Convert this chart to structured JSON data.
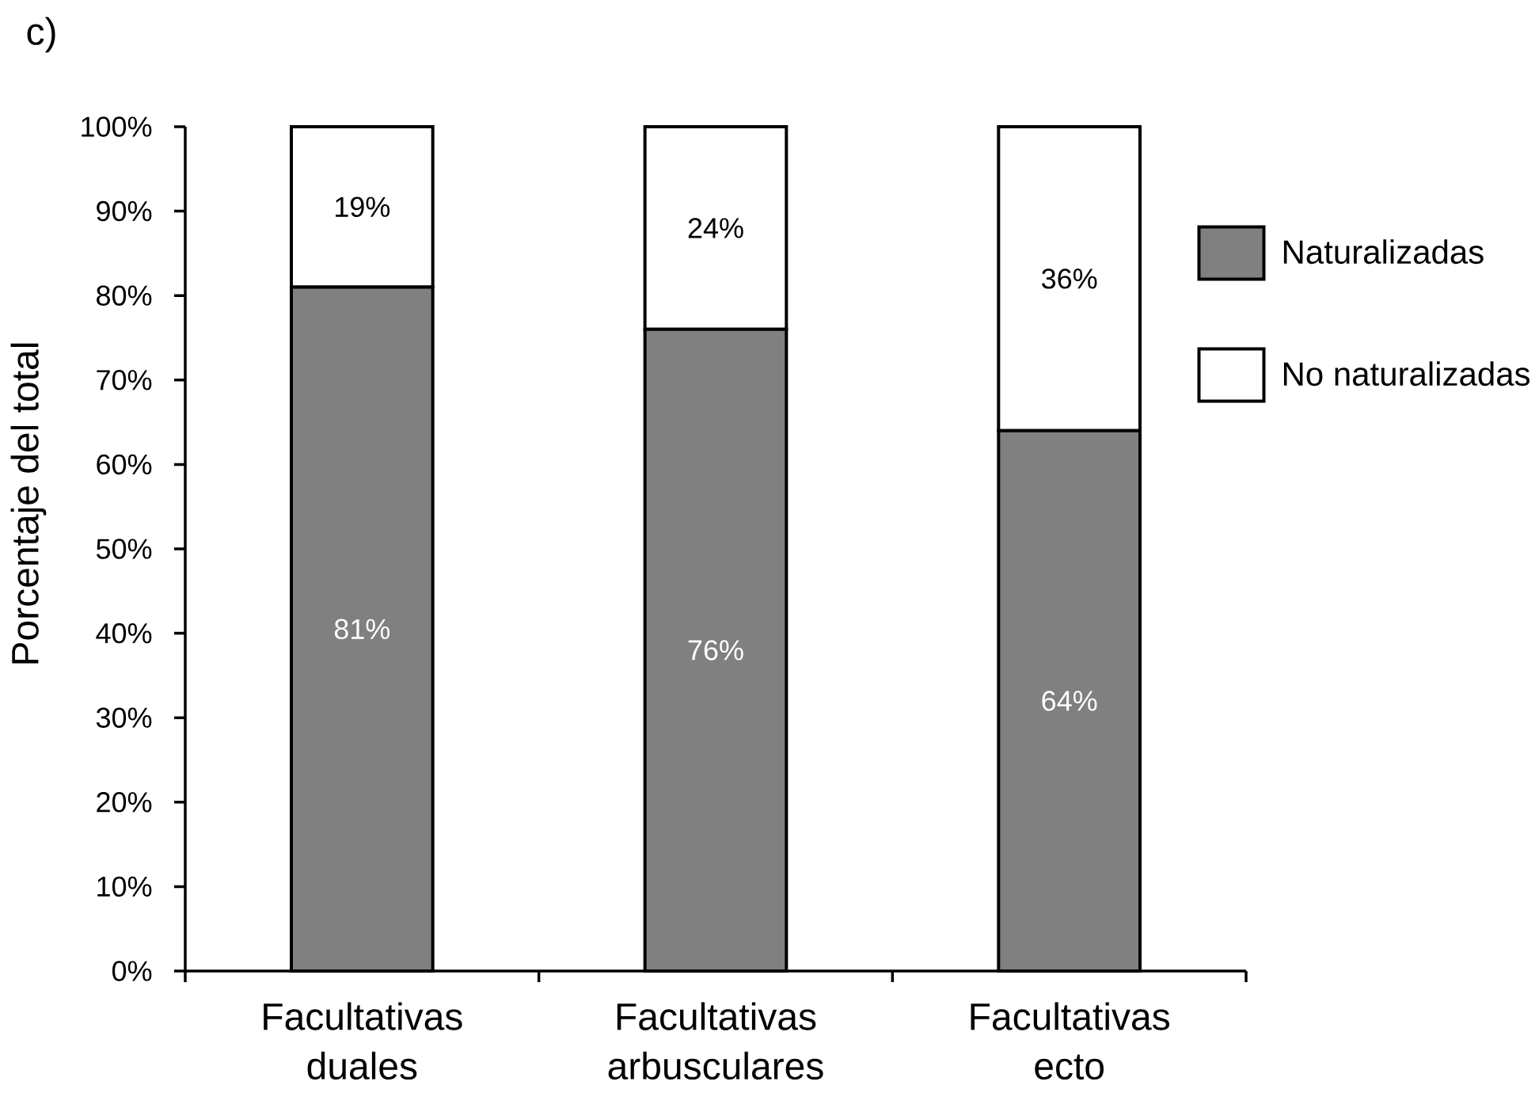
{
  "chart_data": {
    "type": "bar",
    "title": "c)",
    "ylabel": "Porcentaje del total",
    "categories": [
      "Facultativas duales",
      "Facultativas arbusculares",
      "Facultativas ecto"
    ],
    "stacked": true,
    "series": [
      {
        "name": "Naturalizadas",
        "color": "#808080",
        "values": [
          81,
          76,
          64
        ],
        "value_labels": [
          "81%",
          "76%",
          "64%"
        ]
      },
      {
        "name": "No naturalizadas",
        "color": "#ffffff",
        "values": [
          19,
          24,
          36
        ],
        "value_labels": [
          "19%",
          "24%",
          "36%"
        ]
      }
    ],
    "ylim": [
      0,
      100
    ],
    "yticks": [
      {
        "value": 0,
        "label": "0%"
      },
      {
        "value": 10,
        "label": "10%"
      },
      {
        "value": 20,
        "label": "20%"
      },
      {
        "value": 30,
        "label": "30%"
      },
      {
        "value": 40,
        "label": "40%"
      },
      {
        "value": 50,
        "label": "50%"
      },
      {
        "value": 60,
        "label": "60%"
      },
      {
        "value": 70,
        "label": "70%"
      },
      {
        "value": 80,
        "label": "80%"
      },
      {
        "value": 90,
        "label": "90%"
      },
      {
        "value": 100,
        "label": "100%"
      }
    ],
    "legend": "right"
  }
}
